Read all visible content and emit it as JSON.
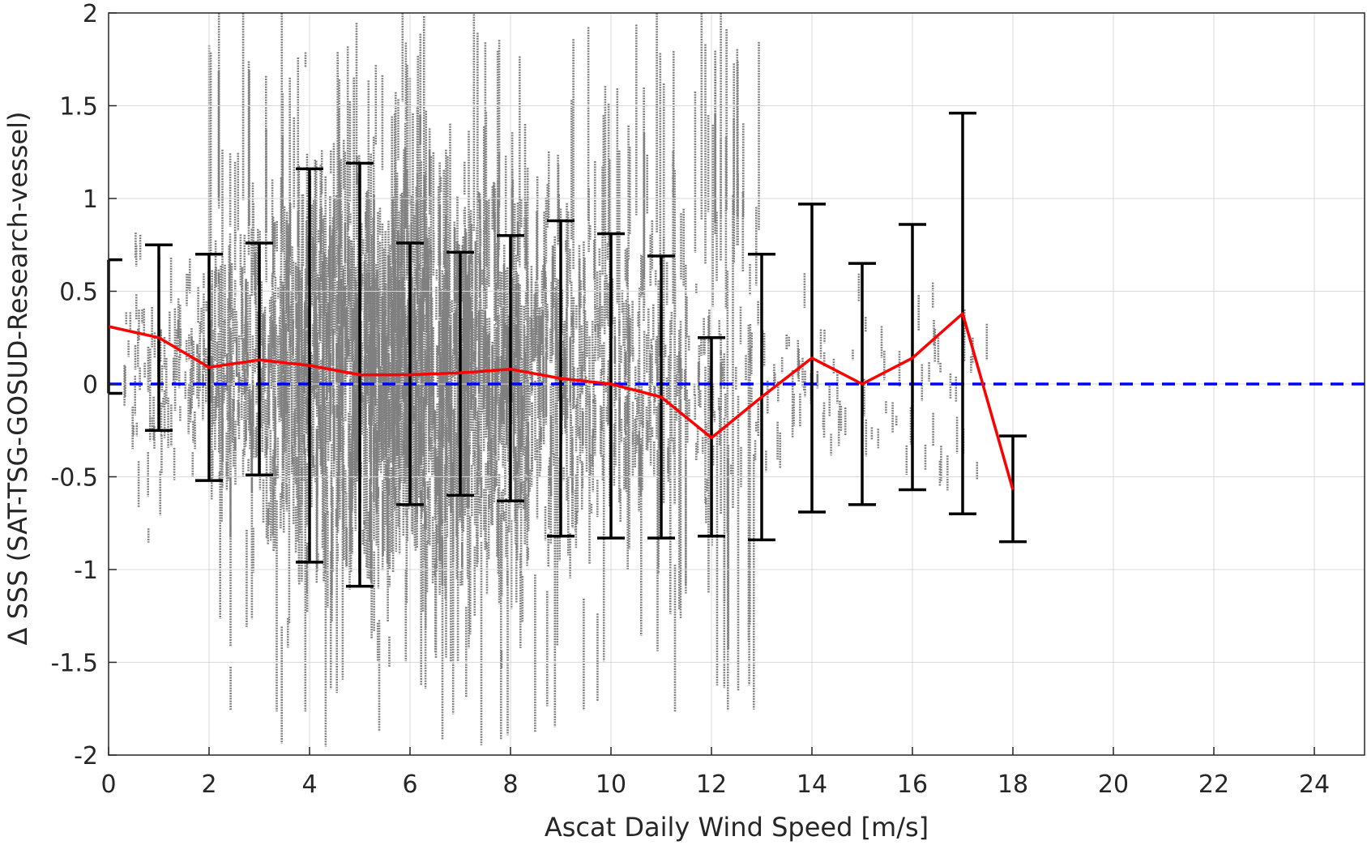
{
  "chart_data": {
    "type": "scatter",
    "title": "",
    "xlabel": "Ascat Daily Wind Speed [m/s]",
    "ylabel": "Δ SSS (SAT-TSG-GOSUD-Research-vessel)",
    "xlim": [
      0,
      25
    ],
    "ylim": [
      -2,
      2
    ],
    "x_ticks": [
      0,
      2,
      4,
      6,
      8,
      10,
      12,
      14,
      16,
      18,
      20,
      22,
      24
    ],
    "y_ticks": [
      -2,
      -1.5,
      -1,
      -0.5,
      0,
      0.5,
      1,
      1.5,
      2
    ],
    "x_tick_labels": [
      "0",
      "2",
      "4",
      "6",
      "8",
      "10",
      "12",
      "14",
      "16",
      "18",
      "20",
      "22",
      "24"
    ],
    "y_tick_labels": [
      "-2",
      "-1.5",
      "-1",
      "-0.5",
      "0",
      "0.5",
      "1",
      "1.5",
      "2"
    ],
    "grid": true,
    "reference_line": {
      "y": 0,
      "style": "dashed",
      "color": "#0000ff"
    },
    "mean_line": {
      "color": "#ff0000",
      "x": [
        0,
        1,
        2,
        3,
        4,
        5,
        6,
        7,
        8,
        9,
        10,
        11,
        12,
        13,
        14,
        15,
        16,
        17,
        18
      ],
      "y": [
        0.31,
        0.25,
        0.09,
        0.13,
        0.1,
        0.05,
        0.05,
        0.06,
        0.08,
        0.03,
        0.0,
        -0.07,
        -0.29,
        -0.07,
        0.14,
        0.0,
        0.14,
        0.38,
        -0.57
      ]
    },
    "error_bars": {
      "color": "#000000",
      "x": [
        0,
        1,
        2,
        3,
        4,
        5,
        6,
        7,
        8,
        9,
        10,
        11,
        12,
        13,
        14,
        15,
        16,
        17,
        18
      ],
      "lower": [
        -0.05,
        -0.25,
        -0.52,
        -0.49,
        -0.96,
        -1.09,
        -0.65,
        -0.6,
        -0.63,
        -0.82,
        -0.83,
        -0.83,
        -0.82,
        -0.84,
        -0.69,
        -0.65,
        -0.57,
        -0.7,
        -0.85
      ],
      "upper": [
        0.67,
        0.75,
        0.7,
        0.76,
        1.16,
        1.19,
        0.76,
        0.71,
        0.8,
        0.88,
        0.81,
        0.69,
        0.25,
        0.7,
        0.97,
        0.65,
        0.86,
        1.46,
        -0.28
      ]
    },
    "scatter_cloud": {
      "color": "#808080",
      "x_range": [
        0,
        17.5
      ],
      "y_range": [
        -2,
        2
      ],
      "description_hidden": true
    }
  }
}
